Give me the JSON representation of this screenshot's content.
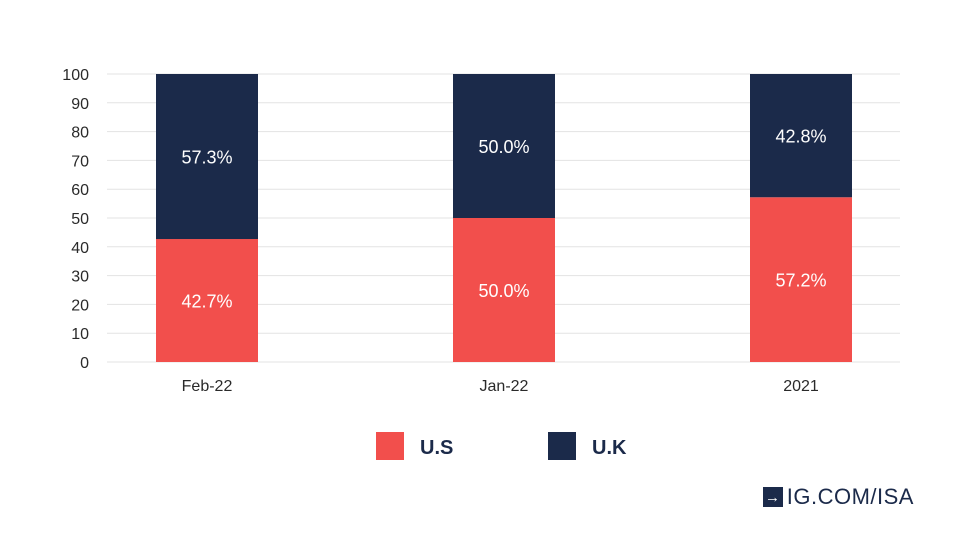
{
  "chart_data": {
    "type": "bar",
    "stacked": true,
    "categories": [
      "Feb-22",
      "Jan-22",
      "2021"
    ],
    "series": [
      {
        "name": "U.S",
        "values": [
          42.7,
          50.0,
          57.2
        ],
        "labels": [
          "42.7%",
          "50.0%",
          "57.2%"
        ],
        "color": "#f24f4c"
      },
      {
        "name": "U.K",
        "values": [
          57.3,
          50.0,
          42.8
        ],
        "labels": [
          "57.3%",
          "50.0%",
          "42.8%"
        ],
        "color": "#1b2a4a"
      }
    ],
    "yticks": [
      "0",
      "10",
      "20",
      "30",
      "40",
      "50",
      "60",
      "70",
      "80",
      "90",
      "100"
    ],
    "ylim": [
      0,
      100
    ],
    "grid": true,
    "legend_position": "bottom"
  },
  "brand": {
    "icon": "arrow-right-icon",
    "text": "IG.COM/ISA"
  }
}
